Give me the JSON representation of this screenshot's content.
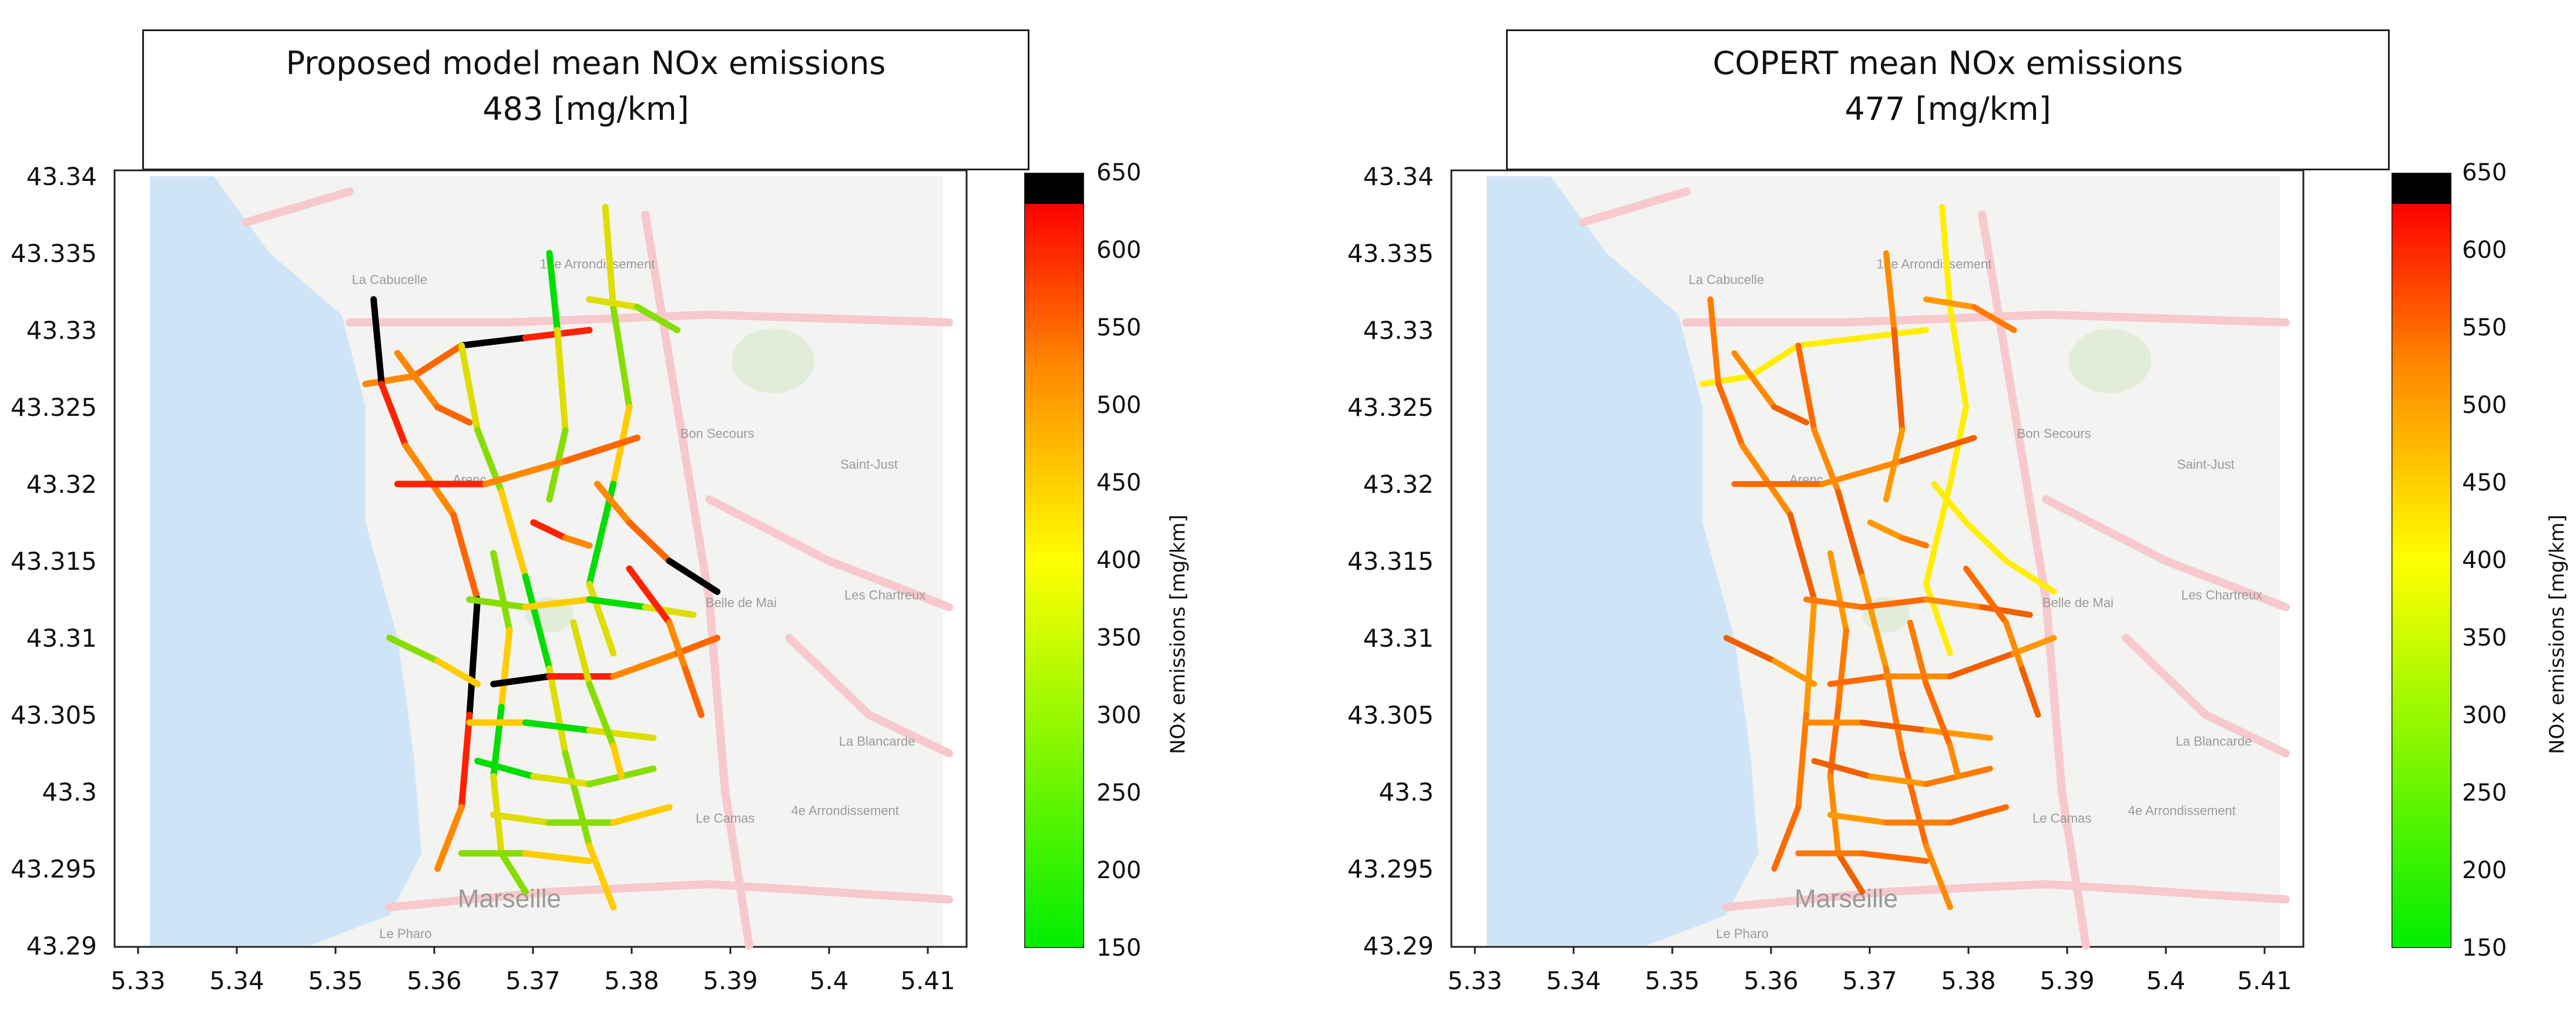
{
  "panels": [
    {
      "title_line1": "Proposed  model mean  NOx emissions",
      "title_line2": "483 [mg/km]",
      "colorbar_label": "NOx emissions [mg/km]",
      "road_style": "mixed"
    },
    {
      "title_line1": "COPERT mean  NOx emissions",
      "title_line2": "477 [mg/km]",
      "colorbar_label": "NOx emissions [mg/km]",
      "road_style": "orange"
    }
  ],
  "x_ticks": [
    "5.33",
    "5.34",
    "5.35",
    "5.36",
    "5.37",
    "5.38",
    "5.39",
    "5.4",
    "5.41"
  ],
  "y_ticks": [
    "43.34",
    "43.335",
    "43.33",
    "43.325",
    "43.32",
    "43.315",
    "43.31",
    "43.305",
    "43.3",
    "43.295",
    "43.29"
  ],
  "colorbar_ticks": [
    "650",
    "600",
    "550",
    "500",
    "450",
    "400",
    "350",
    "300",
    "250",
    "200",
    "150"
  ],
  "colormap": {
    "top": "#000000",
    "high": "#ff0000",
    "mid_high": "#ff8800",
    "mid": "#ffff00",
    "low": "#00ee00"
  },
  "map_labels": [
    "Arenc",
    "Belle de Mai",
    "Bon Secours",
    "Saint-Just",
    "Les Chartreux",
    "La Blancarde",
    "Le Camas",
    "4e Arrondissement",
    "Marseille",
    "La Cabucelle",
    "14e Arrondissement",
    "Le Pharo"
  ],
  "colors": {
    "sea": "#cfe4f7",
    "land": "#f3f3f1",
    "major_road": "#f7c9cc",
    "park": "#e1ecd9"
  }
}
